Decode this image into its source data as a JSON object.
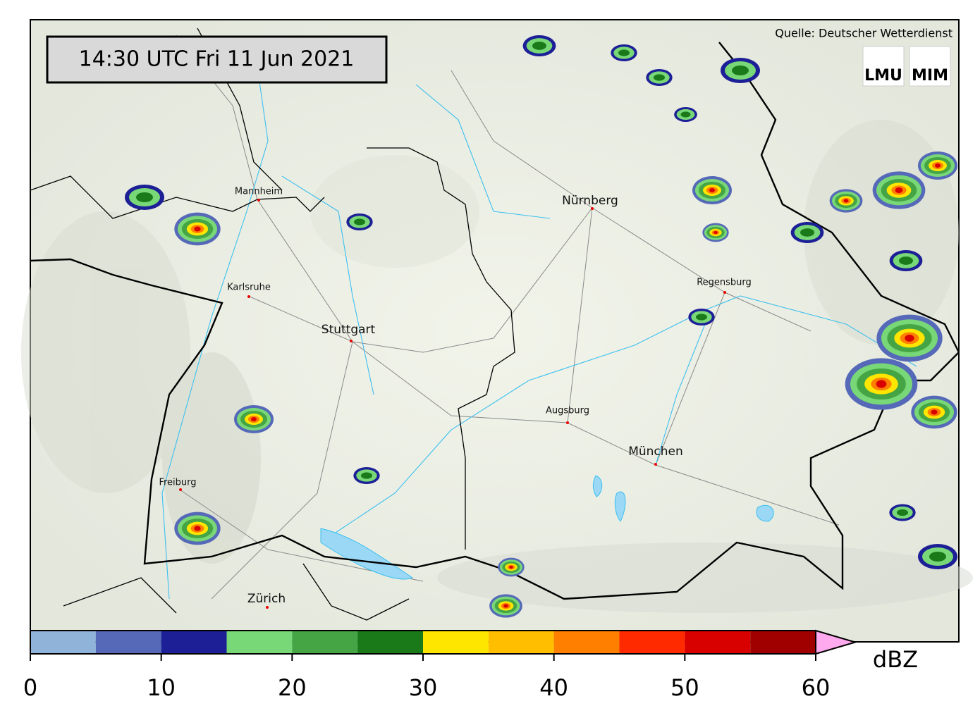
{
  "timestamp": "14:30 UTC  Fri 11 Jun 2021",
  "source": "Quelle: Deutscher Wetterdienst",
  "logos": [
    "LMU",
    "MIM"
  ],
  "cities": [
    "Mannheim",
    "Nürnberg",
    "Karlsruhe",
    "Regensburg",
    "Stuttgart",
    "Augsburg",
    "München",
    "Freiburg",
    "Zürich"
  ],
  "colorbar": {
    "levels": [
      0,
      5,
      10,
      15,
      20,
      25,
      30,
      35,
      40,
      45,
      50,
      55,
      60
    ],
    "colors": [
      "#8fb3d9",
      "#5569b8",
      "#1c1f96",
      "#78d878",
      "#45a545",
      "#1a7a1a",
      "#ffe600",
      "#ffbf00",
      "#ff7f00",
      "#ff2a00",
      "#d90000",
      "#a00000"
    ],
    "extend_color": "#ffaaee",
    "lim": [
      0,
      60
    ],
    "ticks": [
      0,
      10,
      20,
      30,
      40,
      50,
      60
    ],
    "unit": "dBZ"
  }
}
